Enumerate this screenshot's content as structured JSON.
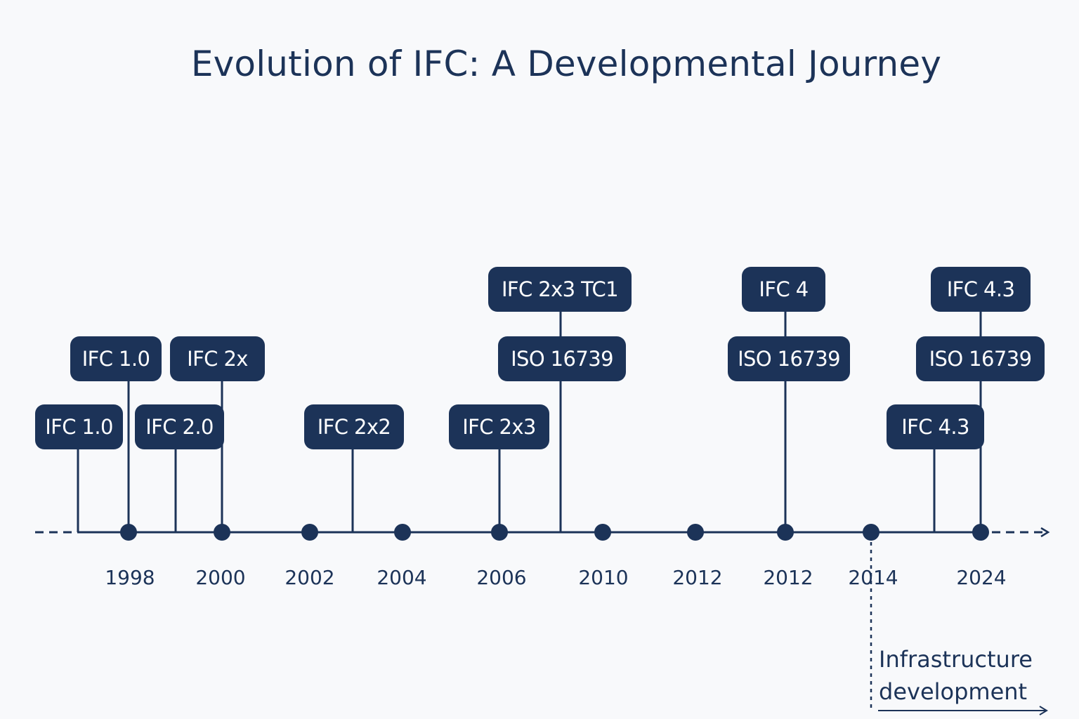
{
  "title": "Evolution of IFC: A Developmental Journey",
  "colors": {
    "primary": "#1c3358",
    "background": "#f8f9fb",
    "label_text": "#ffffff"
  },
  "labels": {
    "l1": "IFC 1.0",
    "l2": "IFC 1.0",
    "l3": "IFC 2.0",
    "l4": "IFC 2x",
    "l5": "IFC 2x2",
    "l6": "IFC 2x3",
    "l7": "ISO 16739",
    "l8": "IFC 2x3 TC1",
    "l9": "ISO 16739",
    "l10": "IFC 4",
    "l11": "IFC 4.3",
    "l12": "ISO 16739",
    "l13": "IFC 4.3"
  },
  "years": {
    "y1": "1998",
    "y2": "2000",
    "y3": "2002",
    "y4": "2004",
    "y5": "2006",
    "y6": "2010",
    "y7": "2012",
    "y8": "2012",
    "y9": "2014",
    "y10": "2024"
  },
  "note": {
    "line1": "Infrastructure",
    "line2": "development"
  }
}
